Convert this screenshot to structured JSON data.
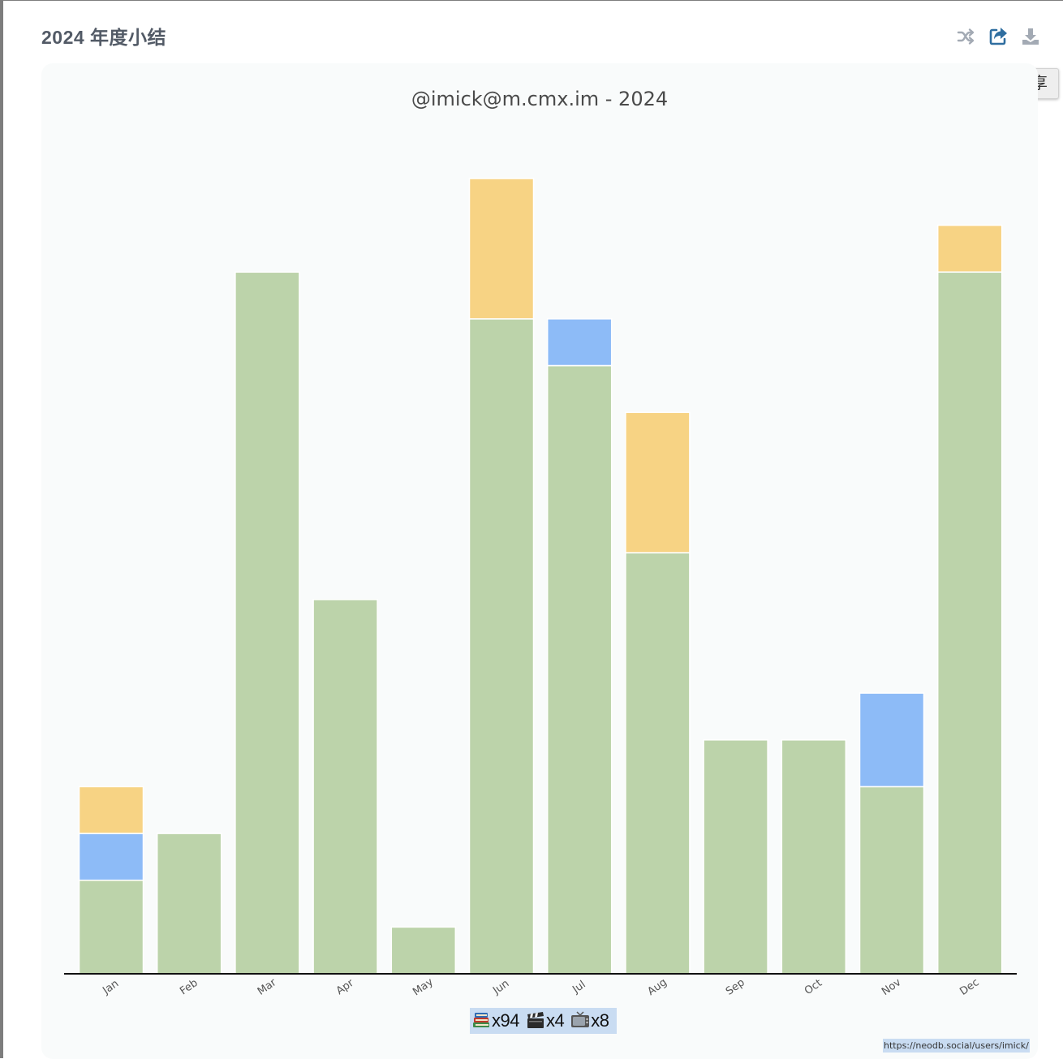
{
  "card": {
    "title": "2024 年度小结"
  },
  "toolbar": {
    "shuffle_icon": "shuffle-icon",
    "share_icon": "share-icon",
    "download_icon": "download-icon",
    "tooltip": "分享",
    "colors": {
      "inactive": "#a3aab4",
      "active": "#2f6ea0"
    }
  },
  "chart_data": {
    "type": "bar",
    "stacked": true,
    "title": "@imick@m.cmx.im - 2024",
    "xlabel": "",
    "ylabel": "",
    "categories": [
      "Jan",
      "Feb",
      "Mar",
      "Apr",
      "May",
      "Jun",
      "Jul",
      "Aug",
      "Sep",
      "Oct",
      "Nov",
      "Dec"
    ],
    "series": [
      {
        "color": "#bcd3aa",
        "values": [
          2,
          3,
          15,
          8,
          1,
          14,
          13,
          9,
          5,
          5,
          4,
          15
        ]
      },
      {
        "color": "#8dbbf7",
        "values": [
          1,
          0,
          0,
          0,
          0,
          0,
          1,
          0,
          0,
          0,
          2,
          0
        ]
      },
      {
        "color": "#f7d384",
        "values": [
          1,
          0,
          0,
          0,
          0,
          3,
          0,
          3,
          0,
          0,
          0,
          1
        ]
      }
    ],
    "ylim": [
      0,
      17
    ],
    "grid": false,
    "legend": "none"
  },
  "summary": {
    "book_icon": "books-icon",
    "book_count": "x94",
    "movie_icon": "clapperboard-icon",
    "movie_count": "x4",
    "tv_icon": "television-icon",
    "tv_count": "x8"
  },
  "footer": {
    "url": "https://neodb.social/users/imick/"
  }
}
